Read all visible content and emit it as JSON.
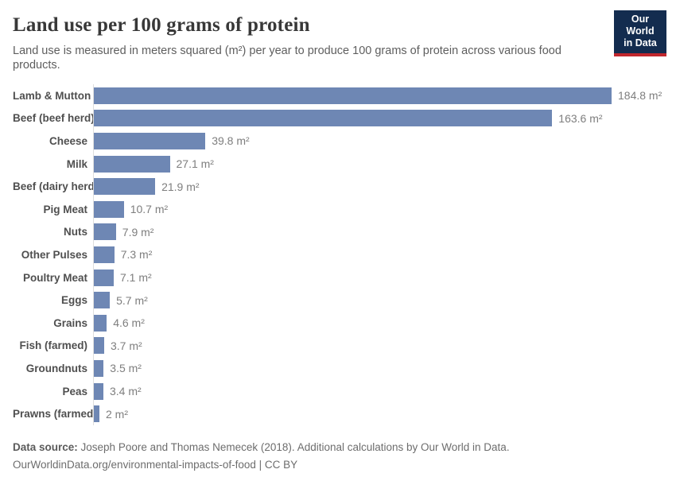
{
  "header": {
    "title": "Land use per 100 grams of protein",
    "subtitle": "Land use is measured in meters squared (m²) per year to produce 100 grams of protein across various food products.",
    "logo": {
      "line1": "Our World",
      "line2": "in Data",
      "bg_color": "#132c4f",
      "accent_color": "#c1272d"
    }
  },
  "chart_data": {
    "type": "bar",
    "orientation": "horizontal",
    "title": "Land use per 100 grams of protein",
    "xlabel": "",
    "ylabel": "",
    "unit": "m²",
    "xlim": [
      0,
      184.8
    ],
    "grid": false,
    "bar_color": "#6e87b4",
    "categories": [
      "Lamb & Mutton",
      "Beef (beef herd)",
      "Cheese",
      "Milk",
      "Beef (dairy herd)",
      "Pig Meat",
      "Nuts",
      "Other Pulses",
      "Poultry Meat",
      "Eggs",
      "Grains",
      "Fish (farmed)",
      "Groundnuts",
      "Peas",
      "Prawns (farmed)"
    ],
    "values": [
      184.8,
      163.6,
      39.8,
      27.1,
      21.9,
      10.7,
      7.9,
      7.3,
      7.1,
      5.7,
      4.6,
      3.7,
      3.5,
      3.4,
      2
    ],
    "value_labels": [
      "184.8 m²",
      "163.6 m²",
      "39.8 m²",
      "27.1 m²",
      "21.9 m²",
      "10.7 m²",
      "7.9 m²",
      "7.3 m²",
      "7.1 m²",
      "5.7 m²",
      "4.6 m²",
      "3.7 m²",
      "3.5 m²",
      "3.4 m²",
      "2 m²"
    ]
  },
  "footer": {
    "source_label": "Data source:",
    "source_text": " Joseph Poore and Thomas Nemecek (2018). Additional calculations by Our World in Data.",
    "link_text": "OurWorldinData.org/environmental-impacts-of-food | CC BY"
  }
}
